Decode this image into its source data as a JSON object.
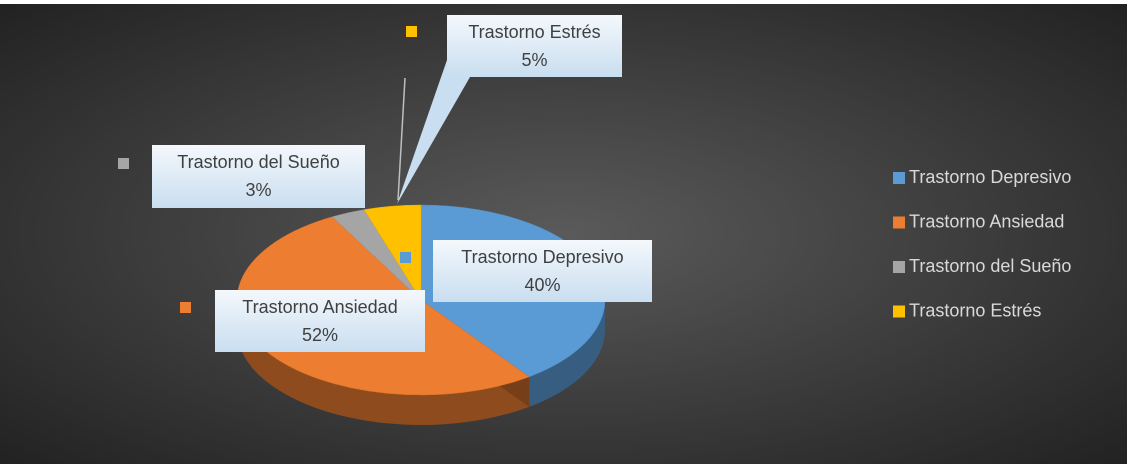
{
  "chart_data": {
    "type": "pie",
    "categories": [
      "Trastorno Depresivo",
      "Trastorno Ansiedad",
      "Trastorno del Sueño",
      "Trastorno Estrés"
    ],
    "values": [
      40,
      52,
      3,
      5
    ],
    "value_labels": [
      "40%",
      "52%",
      "3%",
      "5%"
    ],
    "colors": [
      "#5b9bd5",
      "#ed7d31",
      "#a5a5a5",
      "#ffc000"
    ],
    "legend": "right"
  }
}
